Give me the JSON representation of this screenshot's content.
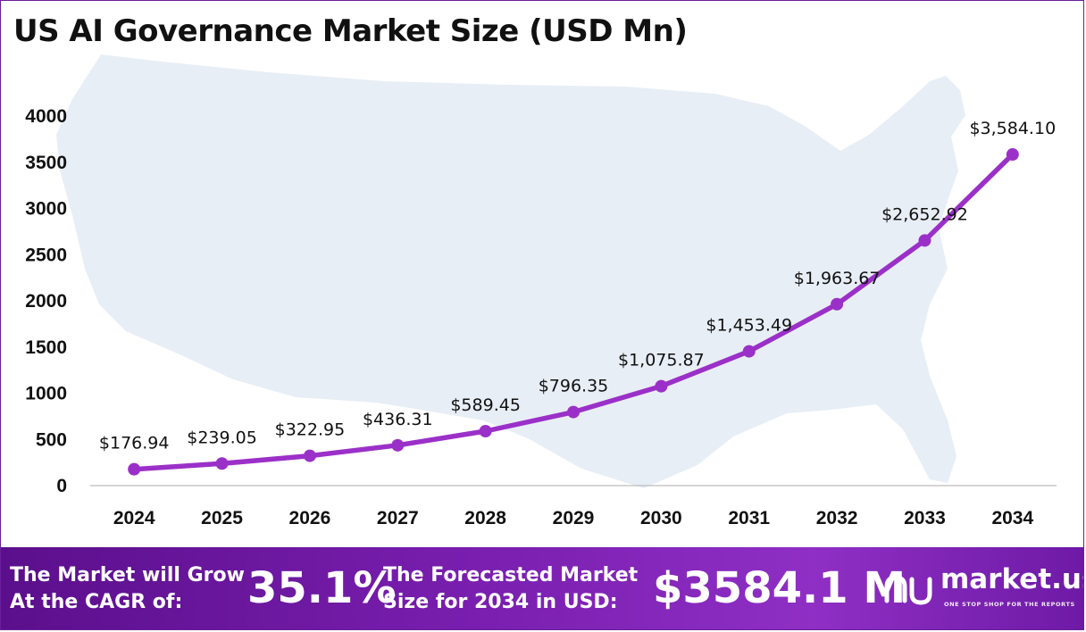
{
  "title": "US AI Governance Market Size (USD Mn)",
  "chart_data": {
    "type": "line",
    "title": "US AI Governance Market Size (USD Mn)",
    "xlabel": "",
    "ylabel": "",
    "categories": [
      "2024",
      "2025",
      "2026",
      "2027",
      "2028",
      "2029",
      "2030",
      "2031",
      "2032",
      "2033",
      "2034"
    ],
    "values": [
      176.94,
      239.05,
      322.95,
      436.31,
      589.45,
      796.35,
      1075.87,
      1453.49,
      1963.67,
      2652.92,
      3584.1
    ],
    "data_labels": [
      "$176.94",
      "$239.05",
      "$322.95",
      "$436.31",
      "$589.45",
      "$796.35",
      "$1,075.87",
      "$1,453.49",
      "$1,963.67",
      "$2,652.92",
      "$3,584.10"
    ],
    "yticks": [
      "0",
      "500",
      "1000",
      "1500",
      "2000",
      "2500",
      "3000",
      "3500",
      "4000"
    ],
    "ylim": [
      0,
      4000
    ],
    "grid": false,
    "legend": "none",
    "line_color": "#9b30c8",
    "background_image": "us-map-silhouette"
  },
  "footer": {
    "cagr_label": [
      "The Market will Grow",
      "At the CAGR of:"
    ],
    "cagr_value": "35.1%",
    "forecast_label": [
      "The Forecasted Market",
      "Size for 2034 in USD:"
    ],
    "forecast_value": "$3584.1 M",
    "brand_name": "market.us",
    "brand_tagline": "ONE STOP SHOP FOR THE REPORTS",
    "logo_icon": "market-us-logo-icon"
  }
}
